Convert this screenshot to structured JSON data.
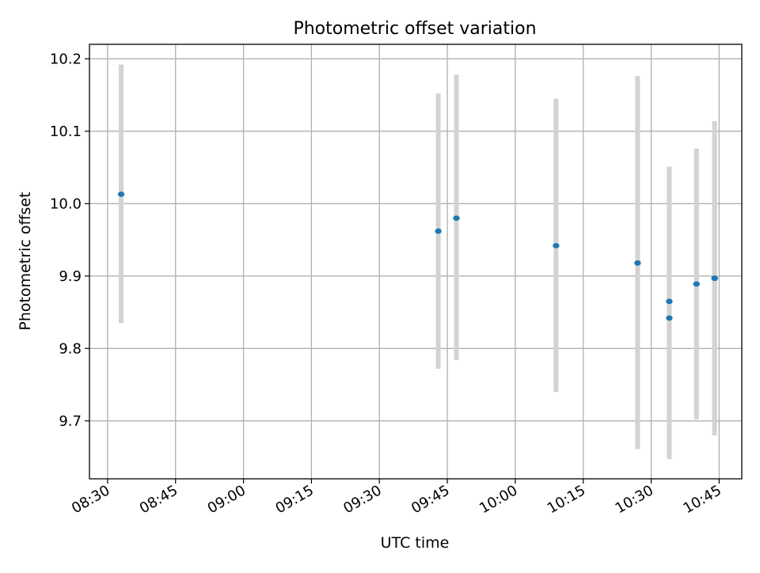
{
  "chart_data": {
    "type": "scatter",
    "title": "Photometric offset variation",
    "xlabel": "UTC time",
    "ylabel": "Photometric offset",
    "x_axis_kind": "time",
    "xlim": [
      "08:26",
      "10:50"
    ],
    "ylim": [
      9.62,
      10.22
    ],
    "grid": true,
    "x_ticks": [
      "08:30",
      "08:45",
      "09:00",
      "09:15",
      "09:30",
      "09:45",
      "10:00",
      "10:15",
      "10:30",
      "10:45"
    ],
    "y_ticks": [
      "10.2",
      "10.1",
      "10.0",
      "9.9",
      "9.8",
      "9.7"
    ],
    "marker_color": "#1f77b4",
    "errorbar_color": "#d3d3d3",
    "points": [
      {
        "x": "08:33",
        "y": 10.013,
        "yerr_low": 9.835,
        "yerr_high": 10.192
      },
      {
        "x": "09:43",
        "y": 9.962,
        "yerr_low": 9.772,
        "yerr_high": 10.152
      },
      {
        "x": "09:47",
        "y": 9.98,
        "yerr_low": 9.784,
        "yerr_high": 10.178
      },
      {
        "x": "10:09",
        "y": 9.942,
        "yerr_low": 9.74,
        "yerr_high": 10.145
      },
      {
        "x": "10:27",
        "y": 9.918,
        "yerr_low": 9.661,
        "yerr_high": 10.176
      },
      {
        "x": "10:34",
        "y": 9.865,
        "yerr_low": 9.679,
        "yerr_high": 10.051
      },
      {
        "x": "10:34",
        "y": 9.842,
        "yerr_low": 9.647,
        "yerr_high": 10.037
      },
      {
        "x": "10:40",
        "y": 9.889,
        "yerr_low": 9.702,
        "yerr_high": 10.076
      },
      {
        "x": "10:44",
        "y": 9.897,
        "yerr_low": 9.68,
        "yerr_high": 10.114
      },
      {
        "x": "10:44",
        "y": 9.897,
        "yerr_low": 9.694,
        "yerr_high": 10.1
      }
    ]
  }
}
